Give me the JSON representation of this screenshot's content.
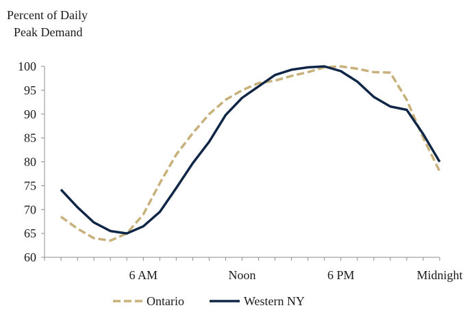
{
  "chart_data": {
    "type": "line",
    "ylabel": [
      "Percent of Daily",
      "Peak Demand"
    ],
    "ylim": [
      60,
      100
    ],
    "yticks": [
      60,
      65,
      70,
      75,
      80,
      85,
      90,
      95,
      100
    ],
    "xlim": [
      0,
      24
    ],
    "xtick_labels": [
      {
        "x": 6,
        "label": "6 AM"
      },
      {
        "x": 12,
        "label": "Noon"
      },
      {
        "x": 18,
        "label": "6 PM"
      },
      {
        "x": 24,
        "label": "Midnight"
      }
    ],
    "grid": false,
    "legend_position": "bottom-center",
    "series": [
      {
        "name": "Ontario",
        "color": "#c8b07a",
        "style": "dashed",
        "x": [
          1,
          2,
          3,
          4,
          5,
          6,
          7,
          8,
          9,
          10,
          11,
          12,
          13,
          14,
          15,
          16,
          17,
          18,
          19,
          20,
          21,
          22,
          23,
          24
        ],
        "values": [
          68.5,
          66,
          64,
          63.5,
          65,
          69,
          75.5,
          81.5,
          86,
          90,
          93,
          95,
          96.5,
          97,
          98,
          98.8,
          99.8,
          100,
          99.5,
          98.8,
          98.7,
          93,
          85,
          78
        ]
      },
      {
        "name": "Western NY",
        "color": "#0f2647",
        "style": "solid",
        "x": [
          1,
          2,
          3,
          4,
          5,
          6,
          7,
          8,
          9,
          10,
          11,
          12,
          13,
          14,
          15,
          16,
          17,
          18,
          19,
          20,
          21,
          22,
          23,
          24
        ],
        "values": [
          74.2,
          70.5,
          67.3,
          65.5,
          65,
          66.5,
          69.5,
          74.5,
          79.7,
          84.2,
          89.8,
          93.4,
          95.8,
          98.2,
          99.3,
          99.8,
          100,
          99,
          96.8,
          93.6,
          91.6,
          90.9,
          85.8,
          80
        ]
      }
    ]
  }
}
